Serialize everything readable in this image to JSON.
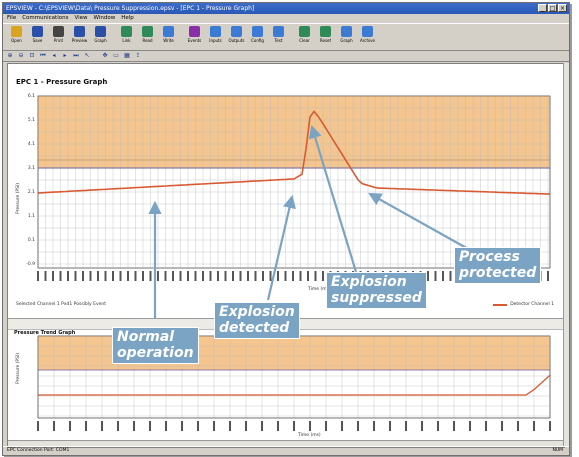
{
  "window": {
    "title": "EPSVIEW - C:\\EPSVIEW\\Data\\ Pressure Suppression.epsv - [EPC 1 - Pressure Graph]",
    "buttons": [
      "_",
      "□",
      "×"
    ]
  },
  "menu": [
    "File",
    "Communications",
    "View",
    "Window",
    "Help"
  ],
  "toolbar": {
    "items": [
      {
        "label": "Open",
        "icon": "folder-icon",
        "color": "#d9a520"
      },
      {
        "label": "Save",
        "icon": "save-icon",
        "color": "#2a4fa8"
      },
      {
        "label": "Print",
        "icon": "print-icon",
        "color": "#444"
      },
      {
        "label": "Preview",
        "icon": "preview-icon",
        "color": "#2a4fa8"
      },
      {
        "label": "Graph",
        "icon": "graph-icon",
        "color": "#2a4fa8"
      },
      {
        "label": "Link",
        "icon": "link-icon",
        "color": "#2e8b57"
      },
      {
        "label": "Read",
        "icon": "read-icon",
        "color": "#2e8b57"
      },
      {
        "label": "Write",
        "icon": "write-icon",
        "color": "#3b7bd4"
      },
      {
        "label": "Events",
        "icon": "events-icon",
        "color": "#8a2ea8"
      },
      {
        "label": "Inputs",
        "icon": "inputs-icon",
        "color": "#3b7bd4"
      },
      {
        "label": "Outputs",
        "icon": "outputs-icon",
        "color": "#3b7bd4"
      },
      {
        "label": "Config",
        "icon": "config-icon",
        "color": "#3b7bd4"
      },
      {
        "label": "Test",
        "icon": "test-icon",
        "color": "#3b7bd4"
      },
      {
        "label": "Clear",
        "icon": "clear-icon",
        "color": "#2e8b57"
      },
      {
        "label": "Reset",
        "icon": "reset-icon",
        "color": "#2e8b57"
      },
      {
        "label": "Graph",
        "icon": "trend-icon",
        "color": "#3b7bd4"
      },
      {
        "label": "Archive",
        "icon": "archive-icon",
        "color": "#3b7bd4"
      }
    ]
  },
  "toolbar2": [
    "zoom-in-icon",
    "zoom-out-icon",
    "zoom-fit-icon",
    "first-icon",
    "prev-icon",
    "next-icon",
    "last-icon",
    "cursor-icon",
    "sep",
    "pan-icon",
    "select-icon",
    "grid-icon",
    "export-icon"
  ],
  "pressure_graph": {
    "title": "EPC 1 - Pressure Graph",
    "ylabel": "Pressure (PSI)",
    "xlabel": "Time (ms)",
    "yticks": [
      "6.1",
      "5.1",
      "4.1",
      "3.1",
      "2.1",
      "1.1",
      "0.1",
      "-0.9"
    ],
    "footer_left": "Selected Channel 1 Pxd1 Possibly Event",
    "legend_label": "Detector Channel 1"
  },
  "trend_graph": {
    "title": "Pressure Trend Graph",
    "ylabel": "Pressure (PSI)",
    "xlabel": "Time (ms)"
  },
  "status": {
    "left": "EPC Connection Port: COM1",
    "right": "NUM"
  },
  "callouts": [
    {
      "id": "normal",
      "text": "Normal\noperation"
    },
    {
      "id": "detected",
      "text": "Explosion\ndetected"
    },
    {
      "id": "suppressed",
      "text": "Explosion\nsuppressed"
    },
    {
      "id": "protected",
      "text": "Process\nprotected"
    }
  ],
  "colors": {
    "band_fill": "#f4c58e",
    "trace": "#d85a30",
    "callout": "#7ba4c4",
    "threshold": "#8a7aa8"
  }
}
